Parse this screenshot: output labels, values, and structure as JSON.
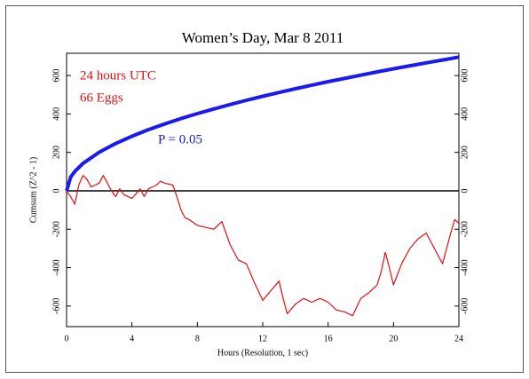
{
  "chart_data": {
    "type": "line",
    "title": "Women’s Day, Mar 8 2011",
    "xlabel": "Hours (Resolution, 1 sec)",
    "ylabel": "Cumsum (Z^2 - 1)",
    "annotations": [
      {
        "text": "24 hours UTC",
        "color": "#dd1111"
      },
      {
        "text": "66 Eggs",
        "color": "#dd1111"
      },
      {
        "text": "P = 0.05",
        "color": "#1a1acc"
      }
    ],
    "xlim": [
      0,
      24
    ],
    "ylim": [
      -707,
      716
    ],
    "xticks": [
      0,
      4,
      8,
      12,
      16,
      20,
      24
    ],
    "yticks": [
      -600,
      -400,
      -200,
      0,
      200,
      400,
      600
    ],
    "series": [
      {
        "name": "P = 0.05",
        "color": "#1a1aee",
        "width": 4,
        "x": [
          0,
          0.25,
          0.5,
          1,
          2,
          3,
          4,
          5,
          6,
          7,
          8,
          9,
          10,
          11,
          12,
          13,
          14,
          15,
          16,
          17,
          18,
          19,
          20,
          21,
          22,
          23,
          24
        ],
        "values": [
          0,
          71,
          100,
          142,
          201,
          246,
          284,
          318,
          348,
          376,
          402,
          426,
          449,
          471,
          492,
          512,
          531,
          550,
          568,
          585,
          602,
          619,
          635,
          651,
          666,
          681,
          696
        ]
      },
      {
        "name": "Cumsum",
        "color": "#e01010",
        "width": 1.2,
        "x": [
          0,
          0.25,
          0.5,
          0.75,
          1,
          1.25,
          1.5,
          1.75,
          2,
          2.25,
          2.5,
          2.75,
          3,
          3.25,
          3.5,
          4,
          4.5,
          4.75,
          5,
          5.5,
          5.75,
          6,
          6.5,
          6.75,
          7,
          7.25,
          7.5,
          8,
          8.5,
          9,
          9.5,
          10,
          10.5,
          11,
          11.5,
          12,
          12.5,
          13,
          13.25,
          13.5,
          14,
          14.5,
          15,
          15.5,
          16,
          16.5,
          17,
          17.5,
          18,
          18.5,
          19,
          19.25,
          19.5,
          19.75,
          20,
          20.5,
          21,
          21.5,
          22,
          22.5,
          23,
          23.5,
          23.75,
          24
        ],
        "values": [
          0,
          -30,
          -70,
          30,
          80,
          60,
          20,
          30,
          40,
          80,
          40,
          0,
          -30,
          10,
          -20,
          -40,
          10,
          -30,
          10,
          30,
          50,
          40,
          30,
          -30,
          -100,
          -140,
          -150,
          -180,
          -190,
          -200,
          -160,
          -280,
          -360,
          -380,
          -480,
          -570,
          -520,
          -470,
          -560,
          -640,
          -590,
          -560,
          -580,
          -560,
          -580,
          -620,
          -630,
          -650,
          -560,
          -530,
          -490,
          -420,
          -320,
          -400,
          -490,
          -380,
          -300,
          -250,
          -220,
          -300,
          -380,
          -220,
          -150,
          -170
        ]
      }
    ]
  }
}
